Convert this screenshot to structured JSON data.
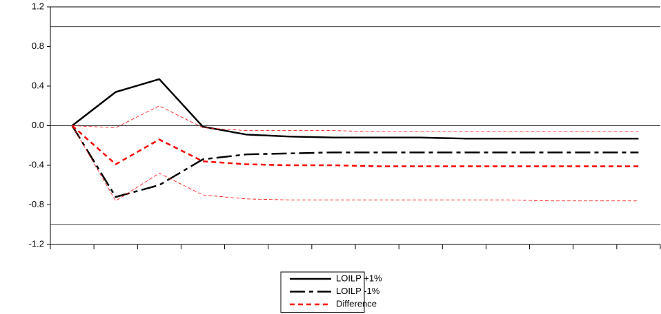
{
  "chart_data": {
    "type": "line",
    "categories": [
      null,
      null,
      null,
      null,
      null,
      null,
      null,
      null,
      null,
      null,
      null,
      null,
      null,
      null
    ],
    "ylim": [
      -1.2,
      1.2
    ],
    "yticks": [
      -1.2,
      -0.8,
      -0.4,
      {
        "value": 0,
        "label": "0.0"
      },
      0.4,
      0.8,
      1.2
    ],
    "hlines": [
      -1,
      0,
      1
    ],
    "legend": "bottom",
    "series": [
      {
        "name": "LOILP +1%",
        "color": "#000000",
        "dash": "solid",
        "width": "thick",
        "values": [
          0,
          0.34,
          0.47,
          -0.01,
          -0.09,
          -0.11,
          -0.12,
          -0.12,
          -0.12,
          -0.13,
          -0.13,
          -0.13,
          -0.13,
          -0.13
        ]
      },
      {
        "name": "LOILP -1%",
        "color": "#000000",
        "dash": "longdash",
        "width": "thick",
        "values": [
          0,
          -0.72,
          -0.6,
          -0.34,
          -0.29,
          -0.28,
          -0.27,
          -0.27,
          -0.27,
          -0.27,
          -0.27,
          -0.27,
          -0.27,
          -0.27
        ]
      },
      {
        "name": "Difference",
        "color": "#ff0000",
        "dash": "dash",
        "width": "thick",
        "values": [
          0,
          -0.39,
          -0.14,
          -0.36,
          -0.39,
          -0.4,
          -0.4,
          -0.41,
          -0.41,
          -0.41,
          -0.41,
          -0.41,
          -0.41,
          -0.41
        ]
      },
      {
        "color": "#ff0000",
        "dash": "dash",
        "width": "thin",
        "values": [
          0,
          -0.02,
          0.2,
          -0.02,
          -0.05,
          -0.05,
          -0.05,
          -0.06,
          -0.06,
          -0.06,
          -0.06,
          -0.06,
          -0.06,
          -0.06
        ]
      },
      {
        "color": "#ff0000",
        "dash": "dash",
        "width": "thin",
        "values": [
          0,
          -0.76,
          -0.48,
          -0.7,
          -0.74,
          -0.75,
          -0.75,
          -0.75,
          -0.75,
          -0.75,
          -0.75,
          -0.76,
          -0.76,
          -0.76
        ]
      }
    ]
  }
}
